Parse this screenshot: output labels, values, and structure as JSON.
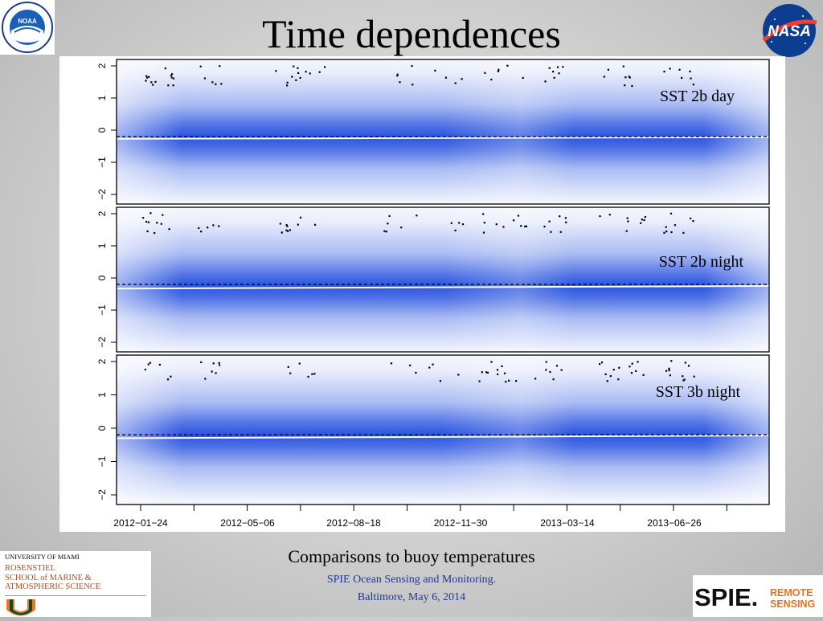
{
  "slide": {
    "title": "Time dependences",
    "caption": "Comparisons to buoy temperatures",
    "footer_line1": "SPIE Ocean Sensing and Monitoring.",
    "footer_line2": "Baltimore, May 6, 2014"
  },
  "logos": {
    "noaa": "NOAA",
    "nasa": "NASA",
    "um_line1": "UNIVERSITY OF MIAMI",
    "um_line2": "ROSENSTIEL",
    "um_line3": "SCHOOL of MARINE &",
    "um_line4": "ATMOSPHERIC SCIENCE",
    "spie_main": "SPIE.",
    "spie_sub1": "REMOTE",
    "spie_sub2": "SENSING"
  },
  "colors": {
    "density_blue": "#2b55e0",
    "background_gray": "#c8c8c8",
    "footer_blue": "#1f3a8a"
  },
  "chart_data": {
    "type": "heatmap",
    "x_tick_labels": [
      "2012-01-24",
      "2012-05-06",
      "2012-08-18",
      "2012-11-30",
      "2013-03-14",
      "2013-06-26"
    ],
    "panels": [
      {
        "label": "SST 2b day",
        "ylim": [
          -2,
          2
        ],
        "y_ticks": [
          -2,
          -1,
          0,
          1,
          2
        ],
        "reference_line": -0.2,
        "mean_line": [
          -0.27,
          -0.22
        ],
        "density_center": -0.2
      },
      {
        "label": "SST 2b night",
        "ylim": [
          -2,
          2
        ],
        "y_ticks": [
          -2,
          -1,
          0,
          1,
          2
        ],
        "reference_line": -0.2,
        "mean_line": [
          -0.33,
          -0.25
        ],
        "density_center": -0.25
      },
      {
        "label": "SST 3b night",
        "ylim": [
          -2,
          2
        ],
        "y_ticks": [
          -2,
          -1,
          0,
          1,
          2
        ],
        "reference_line": -0.2,
        "mean_line": [
          -0.3,
          -0.22
        ],
        "density_center": -0.2
      }
    ]
  }
}
